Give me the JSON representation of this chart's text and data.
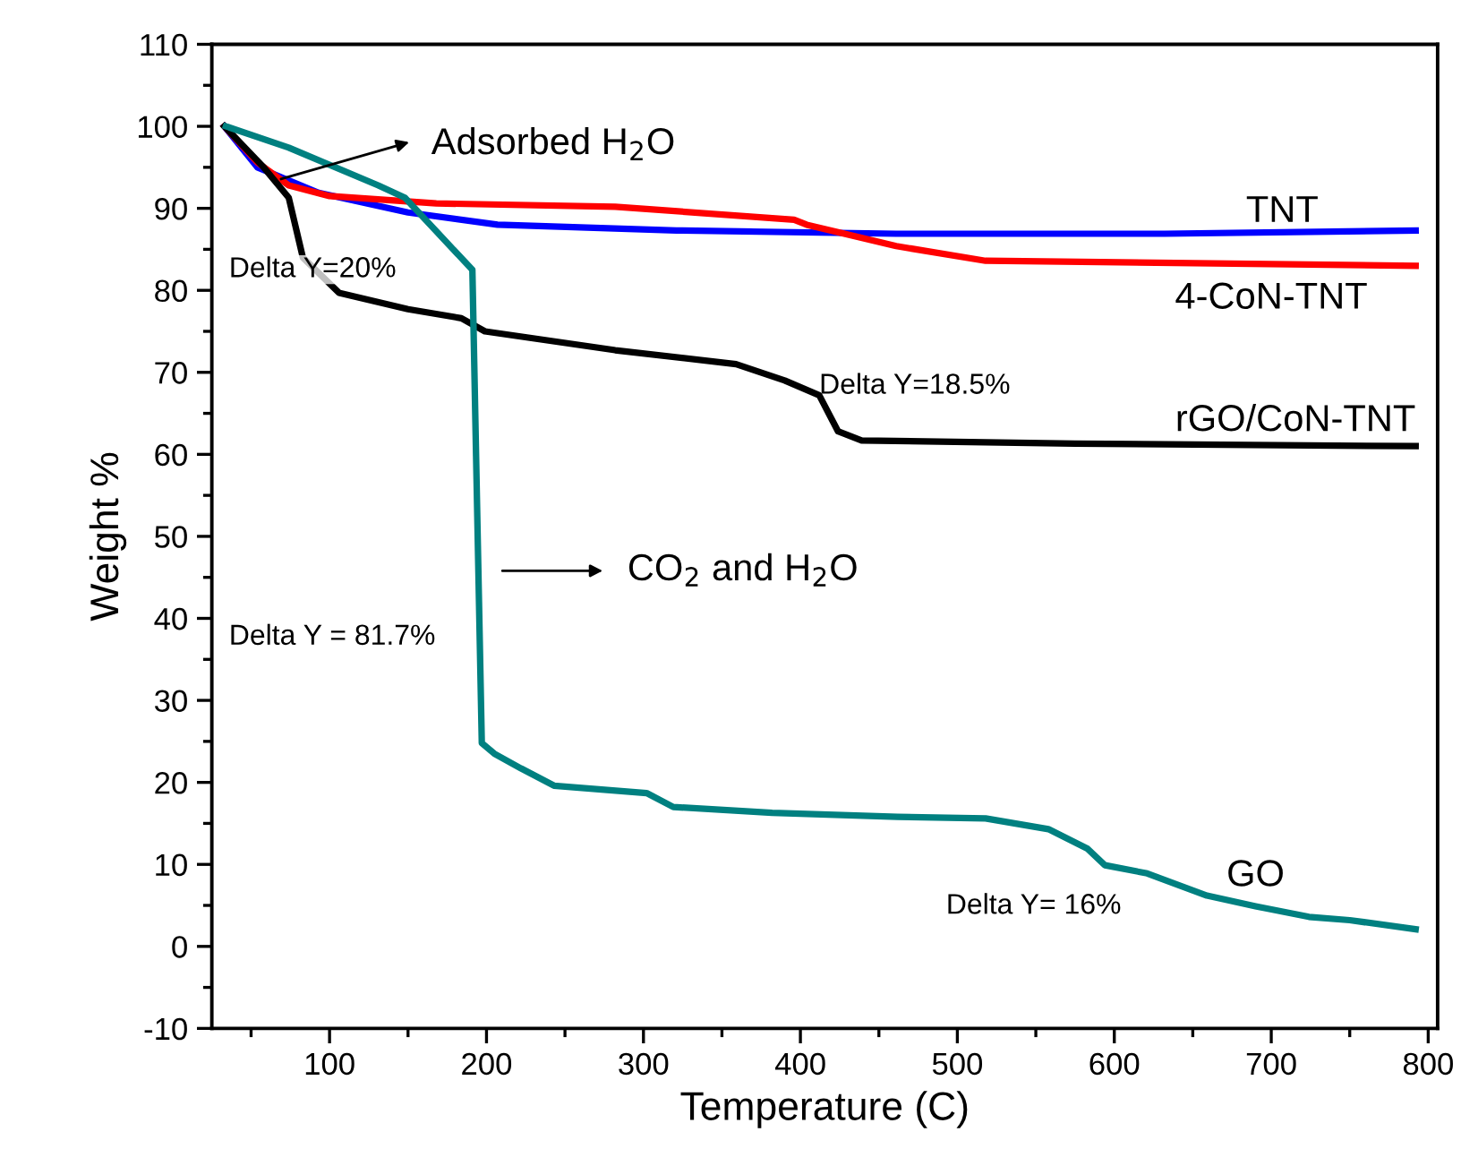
{
  "chart_data": {
    "type": "line",
    "xlabel": "Temperature (C)",
    "ylabel": "Weight %",
    "xlim": [
      25,
      806
    ],
    "xticks": [
      100,
      200,
      300,
      400,
      500,
      600,
      700,
      800
    ],
    "ylim": [
      -10,
      110
    ],
    "yticks": [
      -10,
      0,
      10,
      20,
      30,
      40,
      50,
      60,
      70,
      80,
      90,
      100,
      110
    ],
    "grid": false,
    "legend": false,
    "marker": "none",
    "line_style": "solid",
    "series": [
      {
        "name": "TNT",
        "color": "#0000ff",
        "x": [
          33,
          54,
          93,
          150,
          207,
          321,
          461,
          632,
          792
        ],
        "values": [
          100,
          95,
          91.9,
          89.5,
          88,
          87.3,
          86.9,
          86.9,
          87.3
        ]
      },
      {
        "name": "4-CoN-TNT",
        "color": "#ff0000",
        "x": [
          33,
          54,
          74,
          100,
          168,
          282,
          396,
          404,
          461,
          518,
          792
        ],
        "values": [
          100,
          95.6,
          92.8,
          91.5,
          90.6,
          90.2,
          88.6,
          88,
          85.4,
          83.6,
          83
        ]
      },
      {
        "name": "rGO/CoN-TNT",
        "color": "#000000",
        "x": [
          33,
          58,
          74,
          83,
          106,
          150,
          184,
          199,
          282,
          359,
          390,
          412,
          424,
          439,
          575,
          792
        ],
        "values": [
          100,
          95,
          91.3,
          84,
          79.7,
          77.7,
          76.6,
          75,
          72.7,
          71,
          69,
          67.2,
          62.8,
          61.7,
          61.3,
          61
        ]
      },
      {
        "name": "GO",
        "color": "#008080",
        "x": [
          34,
          74,
          131,
          148,
          191,
          197,
          205,
          222,
          243,
          302,
          319,
          382,
          462,
          518,
          558,
          583,
          594,
          621,
          659,
          690,
          724,
          750,
          792
        ],
        "values": [
          100,
          97.4,
          92.8,
          91.3,
          82.5,
          24.8,
          23.5,
          21.7,
          19.6,
          18.7,
          17,
          16.3,
          15.8,
          15.6,
          14.3,
          11.9,
          9.9,
          8.9,
          6.2,
          4.9,
          3.6,
          3.2,
          2.1
        ]
      }
    ],
    "annotations": [
      {
        "text": "Adsorbed H$_{2}$O",
        "x": 66,
        "y": 93.4
      },
      "CO$_{2}$ and H$_{2}$O",
      "Delta Y=20%",
      "Delta Y=18.5%",
      "Delta Y = 81.7%",
      "Delta Y= 16%"
    ]
  }
}
